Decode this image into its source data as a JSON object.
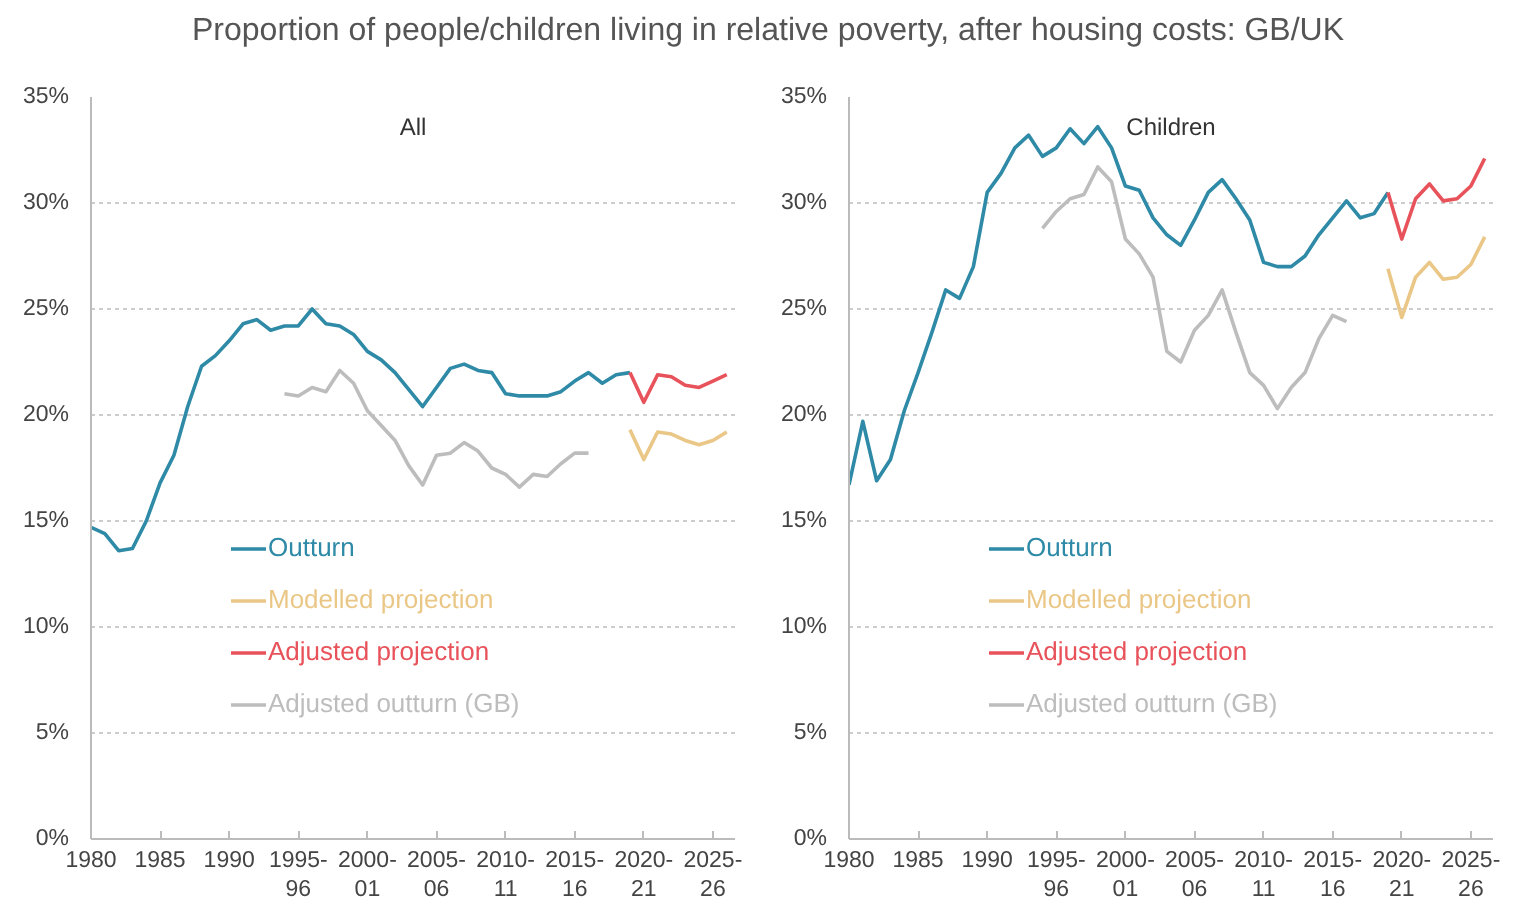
{
  "chart_data": [
    {
      "type": "line",
      "title": "Proportion of people/children living in relative poverty, after housing costs: GB/UK",
      "subtitle": "All",
      "xlim": [
        1980,
        2026.6
      ],
      "ylim": [
        0,
        35
      ],
      "xticks": [
        1980,
        1985,
        1990,
        {
          "value": 1995,
          "label": "1995-\n96"
        },
        {
          "value": 2000,
          "label": "2000-\n01"
        },
        {
          "value": 2005,
          "label": "2005-\n06"
        },
        {
          "value": 2010,
          "label": "2010-\n11"
        },
        {
          "value": 2015,
          "label": "2015-\n16"
        },
        {
          "value": 2020,
          "label": "2020-\n21"
        },
        {
          "value": 2025,
          "label": "2025-\n26"
        }
      ],
      "yticks": [
        {
          "value": 0,
          "label": "0%"
        },
        {
          "value": 5,
          "label": "5%"
        },
        {
          "value": 10,
          "label": "10%"
        },
        {
          "value": 15,
          "label": "15%"
        },
        {
          "value": 20,
          "label": "20%"
        },
        {
          "value": 25,
          "label": "25%"
        },
        {
          "value": 30,
          "label": "30%"
        },
        {
          "value": 35,
          "label": "35%"
        }
      ],
      "grid": "y",
      "legend": "bottom",
      "line_style": "solid",
      "marker": "none",
      "series": [
        {
          "name": "Outturn",
          "color": "#2e8aa6",
          "x": [
            1980,
            1981,
            1982,
            1983,
            1984,
            1985,
            1986,
            1987,
            1988,
            1989,
            1990,
            1991,
            1992,
            1993,
            1994,
            1995,
            1996,
            1997,
            1998,
            1999,
            2000,
            2001,
            2002,
            2003,
            2004,
            2005,
            2006,
            2007,
            2008,
            2009,
            2010,
            2011,
            2012,
            2013,
            2014,
            2015,
            2016,
            2017,
            2018,
            2019
          ],
          "values": [
            14.7,
            14.4,
            13.6,
            13.7,
            15.0,
            16.8,
            18.1,
            20.4,
            22.3,
            22.8,
            23.5,
            24.3,
            24.5,
            24.0,
            24.2,
            24.2,
            25.0,
            24.3,
            24.2,
            23.8,
            23.0,
            22.6,
            22.0,
            21.2,
            20.4,
            21.3,
            22.2,
            22.4,
            22.1,
            22.0,
            21.0,
            20.9,
            20.9,
            20.9,
            21.1,
            21.6,
            22.0,
            21.5,
            21.9,
            22.0
          ]
        },
        {
          "name": "Modelled projection",
          "color": "#eac786",
          "x": [
            2019,
            2020,
            2021,
            2022,
            2023,
            2024,
            2025,
            2026
          ],
          "values": [
            19.3,
            17.9,
            19.2,
            19.1,
            18.8,
            18.6,
            18.8,
            19.2
          ]
        },
        {
          "name": "Adjusted projection",
          "color": "#e8525a",
          "x": [
            2019,
            2020,
            2021,
            2022,
            2023,
            2024,
            2025,
            2026
          ],
          "values": [
            22.0,
            20.6,
            21.9,
            21.8,
            21.4,
            21.3,
            21.6,
            21.9
          ]
        },
        {
          "name": "Adjusted outturn (GB)",
          "color": "#bdbdbd",
          "x": [
            1994,
            1995,
            1996,
            1997,
            1998,
            1999,
            2000,
            2001,
            2002,
            2003,
            2004,
            2005,
            2006,
            2007,
            2008,
            2009,
            2010,
            2011,
            2012,
            2013,
            2014,
            2015,
            2016
          ],
          "values": [
            21.0,
            20.9,
            21.3,
            21.1,
            22.1,
            21.5,
            20.2,
            19.5,
            18.8,
            17.6,
            16.7,
            18.1,
            18.2,
            18.7,
            18.3,
            17.5,
            17.2,
            16.6,
            17.2,
            17.1,
            17.7,
            18.2,
            18.2
          ]
        }
      ]
    },
    {
      "type": "line",
      "subtitle": "Children",
      "xlim": [
        1980,
        2026.6
      ],
      "ylim": [
        0,
        35
      ],
      "xticks": [
        1980,
        1985,
        1990,
        {
          "value": 1995,
          "label": "1995-\n96"
        },
        {
          "value": 2000,
          "label": "2000-\n01"
        },
        {
          "value": 2005,
          "label": "2005-\n06"
        },
        {
          "value": 2010,
          "label": "2010-\n11"
        },
        {
          "value": 2015,
          "label": "2015-\n16"
        },
        {
          "value": 2020,
          "label": "2020-\n21"
        },
        {
          "value": 2025,
          "label": "2025-\n26"
        }
      ],
      "yticks": [
        {
          "value": 0,
          "label": "0%"
        },
        {
          "value": 5,
          "label": "5%"
        },
        {
          "value": 10,
          "label": "10%"
        },
        {
          "value": 15,
          "label": "15%"
        },
        {
          "value": 20,
          "label": "20%"
        },
        {
          "value": 25,
          "label": "25%"
        },
        {
          "value": 30,
          "label": "30%"
        },
        {
          "value": 35,
          "label": "35%"
        }
      ],
      "grid": "y",
      "legend": "bottom",
      "line_style": "solid",
      "marker": "none",
      "series": [
        {
          "name": "Outturn",
          "color": "#2e8aa6",
          "x": [
            1980,
            1981,
            1982,
            1983,
            1984,
            1985,
            1986,
            1987,
            1988,
            1989,
            1990,
            1991,
            1992,
            1993,
            1994,
            1995,
            1996,
            1997,
            1998,
            1999,
            2000,
            2001,
            2002,
            2003,
            2004,
            2005,
            2006,
            2007,
            2008,
            2009,
            2010,
            2011,
            2012,
            2013,
            2014,
            2015,
            2016,
            2017,
            2018,
            2019
          ],
          "values": [
            16.7,
            19.7,
            16.9,
            17.9,
            20.2,
            22.0,
            23.9,
            25.9,
            25.5,
            27.0,
            30.5,
            31.4,
            32.6,
            33.2,
            32.2,
            32.6,
            33.5,
            32.8,
            33.6,
            32.6,
            30.8,
            30.6,
            29.3,
            28.5,
            28.0,
            29.2,
            30.5,
            31.1,
            30.2,
            29.2,
            27.2,
            27.0,
            27.0,
            27.5,
            28.5,
            29.3,
            30.1,
            29.3,
            29.5,
            30.5
          ]
        },
        {
          "name": "Modelled projection",
          "color": "#eac786",
          "x": [
            2019,
            2020,
            2021,
            2022,
            2023,
            2024,
            2025,
            2026
          ],
          "values": [
            26.9,
            24.6,
            26.5,
            27.2,
            26.4,
            26.5,
            27.1,
            28.4
          ]
        },
        {
          "name": "Adjusted projection",
          "color": "#e8525a",
          "x": [
            2019,
            2020,
            2021,
            2022,
            2023,
            2024,
            2025,
            2026
          ],
          "values": [
            30.5,
            28.3,
            30.2,
            30.9,
            30.1,
            30.2,
            30.8,
            32.1
          ]
        },
        {
          "name": "Adjusted outturn (GB)",
          "color": "#bdbdbd",
          "x": [
            1994,
            1995,
            1996,
            1997,
            1998,
            1999,
            2000,
            2001,
            2002,
            2003,
            2004,
            2005,
            2006,
            2007,
            2008,
            2009,
            2010,
            2011,
            2012,
            2013,
            2014,
            2015,
            2016
          ],
          "values": [
            28.8,
            29.6,
            30.2,
            30.4,
            31.7,
            31.0,
            28.3,
            27.6,
            26.5,
            23.0,
            22.5,
            24.0,
            24.7,
            25.9,
            23.9,
            22.0,
            21.4,
            20.3,
            21.3,
            22.0,
            23.6,
            24.7,
            24.4
          ]
        }
      ]
    }
  ]
}
